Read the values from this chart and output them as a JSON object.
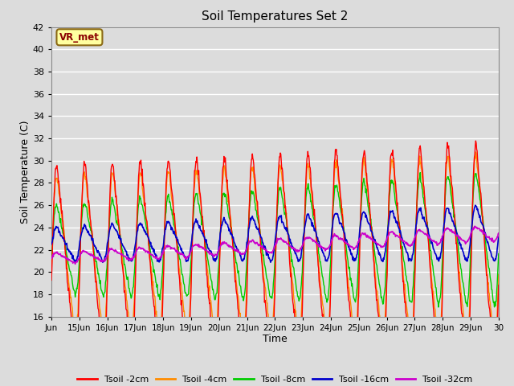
{
  "title": "Soil Temperatures Set 2",
  "xlabel": "Time",
  "ylabel": "Soil Temperature (C)",
  "ylim": [
    16,
    42
  ],
  "yticks": [
    16,
    18,
    20,
    22,
    24,
    26,
    28,
    30,
    32,
    34,
    36,
    38,
    40,
    42
  ],
  "background_color": "#dcdcdc",
  "plot_bg_color": "#dcdcdc",
  "grid_color": "#ffffff",
  "annotation_text": "VR_met",
  "annotation_bg": "#ffffa0",
  "annotation_border": "#8b6914",
  "annotation_text_color": "#8b0000",
  "series_colors": {
    "Tsoil -2cm": "#ff0000",
    "Tsoil -4cm": "#ff8c00",
    "Tsoil -8cm": "#00cc00",
    "Tsoil -16cm": "#0000cc",
    "Tsoil -32cm": "#cc00cc"
  },
  "x_start_day": 14,
  "x_end_day": 30,
  "num_points": 960,
  "xtick_labels": [
    "Jun",
    "15Jun",
    "16Jun",
    "17Jun",
    "18Jun",
    "19Jun",
    "20Jun",
    "21Jun",
    "22Jun",
    "23Jun",
    "24Jun",
    "25Jun",
    "26Jun",
    "27Jun",
    "28Jun",
    "29Jun",
    "30"
  ],
  "xtick_positions": [
    14,
    15,
    16,
    17,
    18,
    19,
    20,
    21,
    22,
    23,
    24,
    25,
    26,
    27,
    28,
    29,
    30
  ]
}
